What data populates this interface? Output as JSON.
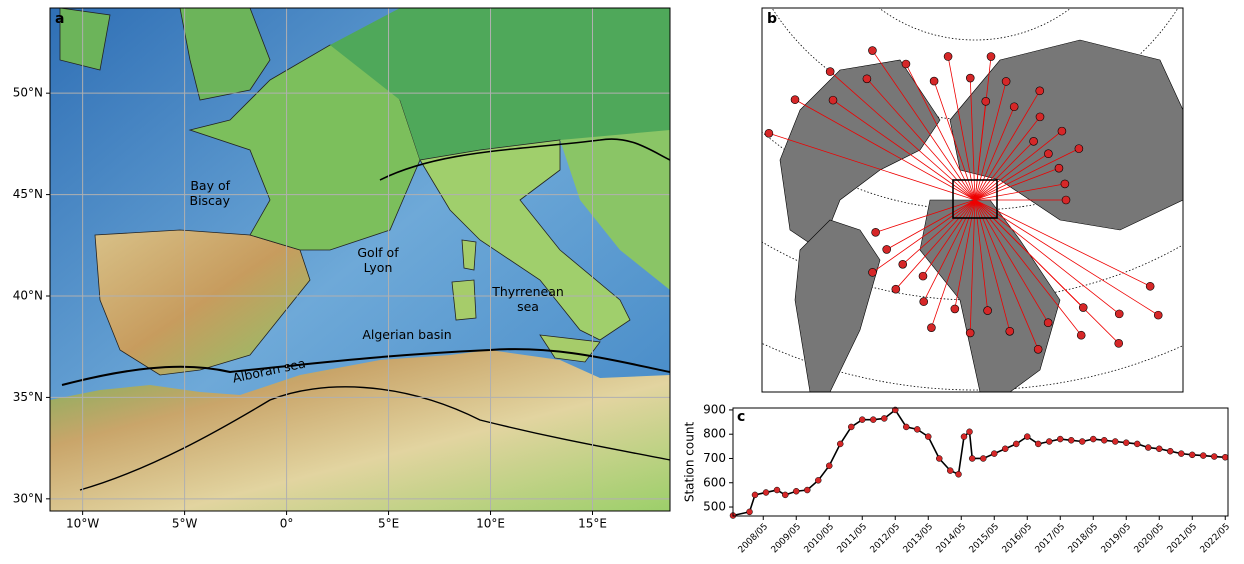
{
  "panel_a": {
    "label": "a",
    "xlim": [
      -11.6,
      18.8
    ],
    "ylim": [
      29.4,
      54.2
    ],
    "xticks": [
      {
        "value": -10,
        "label": "10°W"
      },
      {
        "value": -5,
        "label": "5°W"
      },
      {
        "value": 0,
        "label": "0°"
      },
      {
        "value": 5,
        "label": "5°E"
      },
      {
        "value": 10,
        "label": "10°E"
      },
      {
        "value": 15,
        "label": "15°E"
      }
    ],
    "yticks": [
      {
        "value": 30,
        "label": "30°N"
      },
      {
        "value": 35,
        "label": "35°N"
      },
      {
        "value": 40,
        "label": "40°N"
      },
      {
        "value": 45,
        "label": "45°N"
      },
      {
        "value": 50,
        "label": "50°N"
      }
    ],
    "annotations": [
      "Bay of Biscay",
      "Golf of Lyon",
      "Thyrrenean sea",
      "Algerian basin",
      "Alboran sea"
    ]
  },
  "panel_b": {
    "label": "b"
  },
  "chart_data": {
    "type": "line",
    "panel_label": "c",
    "ylabel": "Station count",
    "color": "#000000",
    "marker_color": "#d62728",
    "xlim": [
      "2007/06",
      "2022/06"
    ],
    "xticks": [
      "2008/05",
      "2009/05",
      "2010/05",
      "2011/05",
      "2012/05",
      "2013/05",
      "2014/05",
      "2015/05",
      "2016/05",
      "2017/05",
      "2018/05",
      "2019/05",
      "2020/05",
      "2021/05",
      "2022/05"
    ],
    "ylim": [
      463,
      908
    ],
    "yticks": [
      500,
      600,
      700,
      800,
      900
    ],
    "x": [
      "2007/06",
      "2007/12",
      "2008/02",
      "2008/06",
      "2008/10",
      "2009/01",
      "2009/05",
      "2009/09",
      "2010/01",
      "2010/05",
      "2010/09",
      "2011/01",
      "2011/05",
      "2011/09",
      "2012/01",
      "2012/05",
      "2012/09",
      "2013/01",
      "2013/05",
      "2013/09",
      "2014/01",
      "2014/04",
      "2014/06",
      "2014/08",
      "2014/09",
      "2015/01",
      "2015/05",
      "2015/09",
      "2016/01",
      "2016/05",
      "2016/09",
      "2017/01",
      "2017/05",
      "2017/09",
      "2018/01",
      "2018/05",
      "2018/09",
      "2019/01",
      "2019/05",
      "2019/09",
      "2020/01",
      "2020/05",
      "2020/09",
      "2021/01",
      "2021/05",
      "2021/09",
      "2022/01",
      "2022/05"
    ],
    "values": [
      465,
      480,
      550,
      560,
      570,
      550,
      565,
      570,
      610,
      670,
      760,
      830,
      860,
      860,
      865,
      900,
      830,
      820,
      790,
      700,
      650,
      635,
      790,
      810,
      700,
      700,
      720,
      740,
      760,
      790,
      760,
      770,
      780,
      775,
      770,
      780,
      775,
      770,
      765,
      760,
      745,
      740,
      730,
      720,
      715,
      712,
      708,
      705
    ]
  }
}
